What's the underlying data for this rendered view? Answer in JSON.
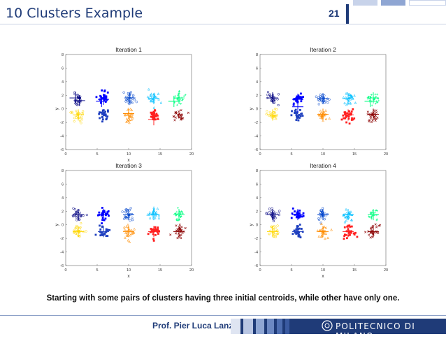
{
  "slide": {
    "title": "10 Clusters Example",
    "page_number": "21",
    "caption": "Starting with some pairs of clusters having three initial centroids, while other have only one.",
    "author": "Prof. Pier Luca Lanzi",
    "institution": "POLITECNICO DI MILANO"
  },
  "colors": {
    "title": "#1f3b78",
    "footer_blue": "#1f3b78",
    "clusters": [
      "#000080",
      "#0000ff",
      "#0044cc",
      "#00bfff",
      "#00ff80",
      "#ffd700",
      "#1e3fbf",
      "#ff8c00",
      "#ff2020",
      "#8b0000"
    ]
  },
  "chart_data": [
    {
      "type": "scatter",
      "title": "Iteration 1",
      "xlabel": "x",
      "ylabel": "y",
      "xlim": [
        0,
        20
      ],
      "ylim": [
        -6,
        8
      ],
      "xticks": [
        "0",
        "5",
        "10",
        "15",
        "20"
      ],
      "yticks": [
        "-6",
        "-4",
        "-2",
        "0",
        "2",
        "4",
        "6",
        "8"
      ],
      "clusters": [
        {
          "x": 2,
          "y": 1.5
        },
        {
          "x": 6,
          "y": 1.5
        },
        {
          "x": 10,
          "y": 1.5
        },
        {
          "x": 14,
          "y": 1.5
        },
        {
          "x": 18,
          "y": 1.5
        },
        {
          "x": 2,
          "y": -1
        },
        {
          "x": 6,
          "y": -1
        },
        {
          "x": 10,
          "y": -1
        },
        {
          "x": 14,
          "y": -1
        },
        {
          "x": 18,
          "y": -1
        }
      ],
      "centroids": [
        {
          "x": 1.5,
          "y": 1.6
        },
        {
          "x": 2.2,
          "y": 1.2
        },
        {
          "x": 6.0,
          "y": 1.4
        },
        {
          "x": 5.7,
          "y": 1.1
        },
        {
          "x": 10.2,
          "y": 1.6
        },
        {
          "x": 14.0,
          "y": 1.5
        },
        {
          "x": 18.0,
          "y": 1.6
        },
        {
          "x": 17.2,
          "y": 1.1
        },
        {
          "x": 2.0,
          "y": -0.9
        },
        {
          "x": 10.0,
          "y": -0.7
        },
        {
          "x": 14.0,
          "y": -1.6
        }
      ]
    },
    {
      "type": "scatter",
      "title": "Iteration 2",
      "xlabel": "",
      "ylabel": "y",
      "xlim": [
        0,
        20
      ],
      "ylim": [
        -6,
        8
      ],
      "xticks": [
        "0",
        "5",
        "10",
        "15",
        "20"
      ],
      "yticks": [
        "-6",
        "-4",
        "-2",
        "0",
        "2",
        "4",
        "6",
        "8"
      ],
      "clusters": [
        {
          "x": 2,
          "y": 1.5
        },
        {
          "x": 6,
          "y": 1.5
        },
        {
          "x": 10,
          "y": 1.5
        },
        {
          "x": 14,
          "y": 1.5
        },
        {
          "x": 18,
          "y": 1.5
        },
        {
          "x": 2,
          "y": -1
        },
        {
          "x": 6,
          "y": -1
        },
        {
          "x": 10,
          "y": -1
        },
        {
          "x": 14,
          "y": -1
        },
        {
          "x": 18,
          "y": -1
        }
      ],
      "centroids": [
        {
          "x": 2.0,
          "y": 1.6
        },
        {
          "x": 6.0,
          "y": 1.4
        },
        {
          "x": 6.0,
          "y": 0.3
        },
        {
          "x": 10.0,
          "y": 1.5
        },
        {
          "x": 14.0,
          "y": 1.5
        },
        {
          "x": 18.0,
          "y": 1.6
        },
        {
          "x": 17.5,
          "y": 1.1
        },
        {
          "x": 2.0,
          "y": -0.9
        },
        {
          "x": 10.0,
          "y": -0.8
        },
        {
          "x": 14.0,
          "y": -0.9
        },
        {
          "x": 18.0,
          "y": -0.8
        }
      ]
    },
    {
      "type": "scatter",
      "title": "Iteration 3",
      "xlabel": "x",
      "ylabel": "y",
      "xlim": [
        0,
        20
      ],
      "ylim": [
        -6,
        8
      ],
      "xticks": [
        "0",
        "5",
        "10",
        "15",
        "20"
      ],
      "yticks": [
        "-6",
        "-4",
        "-2",
        "0",
        "2",
        "4",
        "6",
        "8"
      ],
      "clusters": [
        {
          "x": 2,
          "y": 1.5
        },
        {
          "x": 6,
          "y": 1.5
        },
        {
          "x": 10,
          "y": 1.5
        },
        {
          "x": 14,
          "y": 1.5
        },
        {
          "x": 18,
          "y": 1.5
        },
        {
          "x": 2,
          "y": -1
        },
        {
          "x": 6,
          "y": -1
        },
        {
          "x": 10,
          "y": -1
        },
        {
          "x": 14,
          "y": -1
        },
        {
          "x": 18,
          "y": -1
        }
      ],
      "centroids": [
        {
          "x": 2.0,
          "y": 1.5
        },
        {
          "x": 6.0,
          "y": 1.5
        },
        {
          "x": 10.0,
          "y": 1.5
        },
        {
          "x": 14.0,
          "y": 1.5
        },
        {
          "x": 18.0,
          "y": 1.5
        },
        {
          "x": 2.0,
          "y": -1.0
        },
        {
          "x": 6.0,
          "y": -1.0
        },
        {
          "x": 10.0,
          "y": -1.0
        },
        {
          "x": 14.0,
          "y": -1.0
        },
        {
          "x": 18.0,
          "y": -1.0
        }
      ]
    },
    {
      "type": "scatter",
      "title": "Iteration 4",
      "xlabel": "x",
      "ylabel": "y",
      "xlim": [
        0,
        20
      ],
      "ylim": [
        -6,
        8
      ],
      "xticks": [
        "0",
        "5",
        "10",
        "15",
        "20"
      ],
      "yticks": [
        "-6",
        "-4",
        "-2",
        "0",
        "2",
        "4",
        "6",
        "8"
      ],
      "clusters": [
        {
          "x": 2,
          "y": 1.5
        },
        {
          "x": 6,
          "y": 1.5
        },
        {
          "x": 10,
          "y": 1.5
        },
        {
          "x": 14,
          "y": 1.5
        },
        {
          "x": 18,
          "y": 1.5
        },
        {
          "x": 2,
          "y": -1
        },
        {
          "x": 6,
          "y": -1
        },
        {
          "x": 10,
          "y": -1
        },
        {
          "x": 14,
          "y": -1
        },
        {
          "x": 18,
          "y": -1
        }
      ],
      "centroids": [
        {
          "x": 2.0,
          "y": 1.5
        },
        {
          "x": 6.0,
          "y": 1.5
        },
        {
          "x": 10.0,
          "y": 1.5
        },
        {
          "x": 14.0,
          "y": 1.5
        },
        {
          "x": 18.0,
          "y": 1.5
        },
        {
          "x": 2.0,
          "y": -1.0
        },
        {
          "x": 6.0,
          "y": -1.0
        },
        {
          "x": 10.0,
          "y": -1.0
        },
        {
          "x": 14.0,
          "y": -1.0
        },
        {
          "x": 18.0,
          "y": -1.0
        }
      ]
    }
  ]
}
